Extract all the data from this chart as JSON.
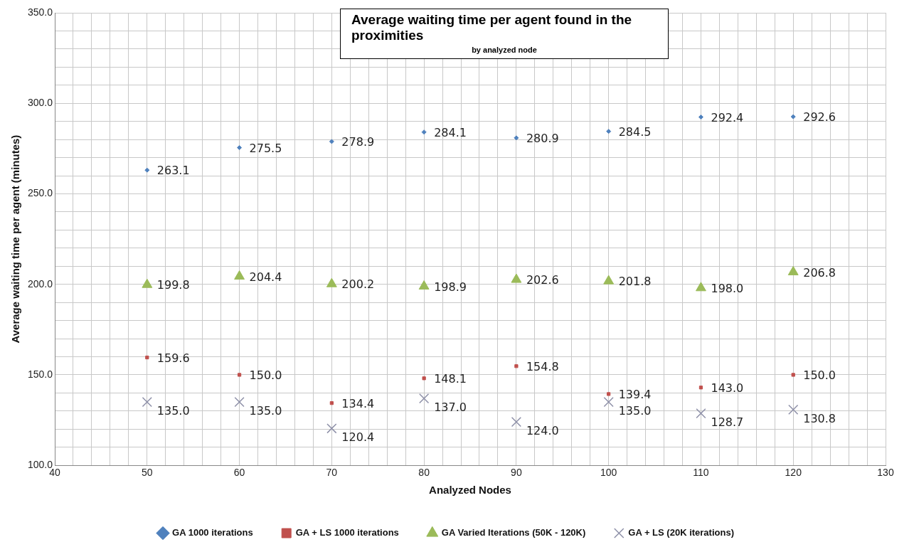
{
  "chart_data": {
    "type": "scatter",
    "title": "Average waiting time per agent found in the proximities",
    "subtitle": "by analyzed node",
    "xlabel": "Analyzed Nodes",
    "ylabel": "Average waiting time per agent (minutes)",
    "x": [
      50,
      60,
      70,
      80,
      90,
      100,
      110,
      120
    ],
    "series": [
      {
        "name": "GA 1000 iterations",
        "color": "#4f81bd",
        "marker": "diamond",
        "values": [
          263.1,
          275.5,
          278.9,
          284.1,
          280.9,
          284.5,
          292.4,
          292.6
        ],
        "value_labels": [
          "263.1",
          "275.5",
          "278.9",
          "284.1",
          "280.9",
          "284.5",
          "292.4",
          "292.6"
        ]
      },
      {
        "name": "GA + LS 1000 iterations",
        "color": "#c0504d",
        "marker": "square",
        "values": [
          159.6,
          150.0,
          134.4,
          148.1,
          154.8,
          139.4,
          143.0,
          150.0
        ],
        "value_labels": [
          "159.6",
          "150.0",
          "134.4",
          "148.1",
          "154.8",
          "139.4",
          "143.0",
          "150.0"
        ]
      },
      {
        "name": "GA Varied Iterations (50K - 120K)",
        "color": "#9bbb59",
        "marker": "triangle",
        "values": [
          199.8,
          204.4,
          200.2,
          198.9,
          202.6,
          201.8,
          198.0,
          206.8
        ],
        "value_labels": [
          "199.8",
          "204.4",
          "200.2",
          "198.9",
          "202.6",
          "201.8",
          "198.0",
          "206.8"
        ]
      },
      {
        "name": "GA + LS (20K iterations)",
        "color": "#8e90a8",
        "marker": "cross",
        "values": [
          135.0,
          135.0,
          120.4,
          137.0,
          124.0,
          135.0,
          128.7,
          130.8
        ],
        "value_labels": [
          "135.0",
          "135.0",
          "120.4",
          "137.0",
          "124.0",
          "135.0",
          "128.7",
          "130.8"
        ]
      }
    ],
    "xlim": [
      40,
      130
    ],
    "xticks": [
      40,
      {
        "value": 42,
        "label": null
      },
      {
        "value": 44,
        "label": null
      },
      {
        "value": 46,
        "label": null
      },
      {
        "value": 48,
        "label": null
      },
      50,
      {
        "value": 52,
        "label": null
      },
      {
        "value": 54,
        "label": null
      },
      {
        "value": 56,
        "label": null
      },
      {
        "value": 58,
        "label": null
      },
      60,
      {
        "value": 62,
        "label": null
      },
      {
        "value": 64,
        "label": null
      },
      {
        "value": 66,
        "label": null
      },
      {
        "value": 68,
        "label": null
      },
      70,
      {
        "value": 72,
        "label": null
      },
      {
        "value": 74,
        "label": null
      },
      {
        "value": 76,
        "label": null
      },
      {
        "value": 78,
        "label": null
      },
      80,
      {
        "value": 82,
        "label": null
      },
      {
        "value": 84,
        "label": null
      },
      {
        "value": 86,
        "label": null
      },
      {
        "value": 88,
        "label": null
      },
      90,
      {
        "value": 92,
        "label": null
      },
      {
        "value": 94,
        "label": null
      },
      {
        "value": 96,
        "label": null
      },
      {
        "value": 98,
        "label": null
      },
      100,
      {
        "value": 102,
        "label": null
      },
      {
        "value": 104,
        "label": null
      },
      {
        "value": 106,
        "label": null
      },
      {
        "value": 108,
        "label": null
      },
      110,
      {
        "value": 112,
        "label": null
      },
      {
        "value": 114,
        "label": null
      },
      {
        "value": 116,
        "label": null
      },
      {
        "value": 118,
        "label": null
      },
      120,
      {
        "value": 122,
        "label": null
      },
      {
        "value": 124,
        "label": null
      },
      {
        "value": 126,
        "label": null
      },
      {
        "value": 128,
        "label": null
      },
      130
    ],
    "ylim": [
      100,
      350
    ],
    "yticks": [
      {
        "value": 100,
        "label": "100.0"
      },
      {
        "value": 110,
        "label": null
      },
      {
        "value": 120,
        "label": null
      },
      {
        "value": 130,
        "label": null
      },
      {
        "value": 140,
        "label": null
      },
      {
        "value": 150,
        "label": "150.0"
      },
      {
        "value": 160,
        "label": null
      },
      {
        "value": 170,
        "label": null
      },
      {
        "value": 180,
        "label": null
      },
      {
        "value": 190,
        "label": null
      },
      {
        "value": 200,
        "label": "200.0"
      },
      {
        "value": 210,
        "label": null
      },
      {
        "value": 220,
        "label": null
      },
      {
        "value": 230,
        "label": null
      },
      {
        "value": 240,
        "label": null
      },
      {
        "value": 250,
        "label": "250.0"
      },
      {
        "value": 260,
        "label": null
      },
      {
        "value": 270,
        "label": null
      },
      {
        "value": 280,
        "label": null
      },
      {
        "value": 290,
        "label": null
      },
      {
        "value": 300,
        "label": "300.0"
      },
      {
        "value": 310,
        "label": null
      },
      {
        "value": 320,
        "label": null
      },
      {
        "value": 330,
        "label": null
      },
      {
        "value": 340,
        "label": null
      },
      {
        "value": 350,
        "label": "350.0"
      }
    ],
    "grid": true,
    "legend": "bottom"
  }
}
